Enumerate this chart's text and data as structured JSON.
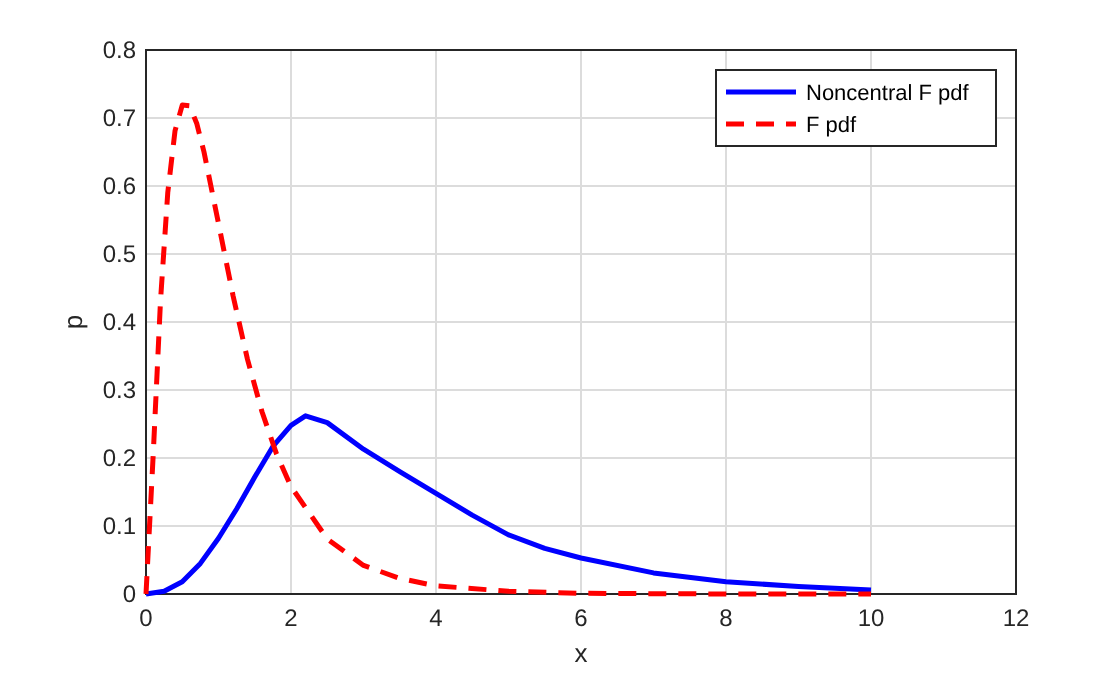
{
  "chart_data": {
    "type": "line",
    "xlabel": "x",
    "ylabel": "p",
    "xlim": [
      0,
      12
    ],
    "ylim": [
      0,
      0.8
    ],
    "xticks": [
      0,
      2,
      4,
      6,
      8,
      10,
      12
    ],
    "yticks": [
      0,
      0.1,
      0.2,
      0.3,
      0.4,
      0.5,
      0.6,
      0.7,
      0.8
    ],
    "grid": true,
    "legend": "top right",
    "series": [
      {
        "name": "Noncentral F pdf",
        "color": "#0000ff",
        "line_style": "solid",
        "x": [
          0,
          0.25,
          0.5,
          0.75,
          1,
          1.25,
          1.5,
          1.75,
          2,
          2.2,
          2.5,
          3,
          3.5,
          4,
          4.5,
          5,
          5.5,
          6,
          7,
          8,
          9,
          10
        ],
        "values": [
          0,
          0.004,
          0.018,
          0.045,
          0.082,
          0.125,
          0.172,
          0.217,
          0.248,
          0.262,
          0.252,
          0.213,
          0.18,
          0.148,
          0.116,
          0.087,
          0.067,
          0.053,
          0.031,
          0.018,
          0.011,
          0.006
        ]
      },
      {
        "name": "F pdf",
        "color": "#ff0000",
        "line_style": "dashed",
        "x": [
          0,
          0.1,
          0.2,
          0.3,
          0.4,
          0.5,
          0.6,
          0.7,
          0.8,
          1,
          1.2,
          1.4,
          1.6,
          1.8,
          2,
          2.5,
          3,
          3.5,
          4,
          5,
          6,
          8,
          10
        ],
        "values": [
          0,
          0.206,
          0.431,
          0.59,
          0.681,
          0.719,
          0.718,
          0.692,
          0.65,
          0.545,
          0.439,
          0.345,
          0.268,
          0.206,
          0.158,
          0.081,
          0.042,
          0.023,
          0.012,
          0.004,
          0.001,
          0,
          0
        ]
      }
    ]
  }
}
